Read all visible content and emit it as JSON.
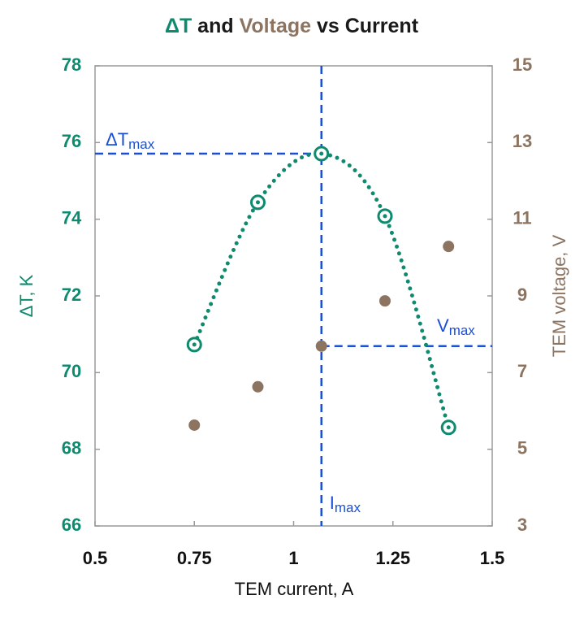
{
  "chart_data": {
    "type": "scatter",
    "title_parts": [
      {
        "text": "ΔT",
        "color": "#0e8a6e"
      },
      {
        "text": " and ",
        "color": "#1a1a1a"
      },
      {
        "text": "Voltage",
        "color": "#8c7461"
      },
      {
        "text": " vs Current",
        "color": "#1a1a1a"
      }
    ],
    "xlabel": "TEM current, A",
    "ylabel": "ΔT, K",
    "y2label": "TEM voltage, V",
    "x": [
      0.75,
      0.91,
      1.07,
      1.23,
      1.39
    ],
    "series": [
      {
        "color": "#0e8a6e",
        "axis": "y",
        "values": [
          70.73,
          74.44,
          75.71,
          74.08,
          68.57
        ]
      },
      {
        "color": "#8c7461",
        "axis": "y2",
        "values": [
          5.63,
          6.63,
          7.69,
          8.87,
          10.29
        ]
      }
    ],
    "xlim": [
      0.5,
      1.5
    ],
    "xticks": [
      0.5,
      0.75,
      1,
      1.25,
      1.5
    ],
    "ylim": [
      66,
      78
    ],
    "yticks": [
      66,
      68,
      70,
      72,
      74,
      76,
      78
    ],
    "y2lim": [
      3,
      15
    ],
    "y2ticks": [
      3,
      5,
      7,
      9,
      11,
      13,
      15
    ],
    "reference_color": "#1a4fd6",
    "annotations": [
      {
        "text": "ΔT",
        "sub": "max"
      },
      {
        "text": "V",
        "sub": "max"
      },
      {
        "text": "I",
        "sub": "max"
      }
    ]
  }
}
